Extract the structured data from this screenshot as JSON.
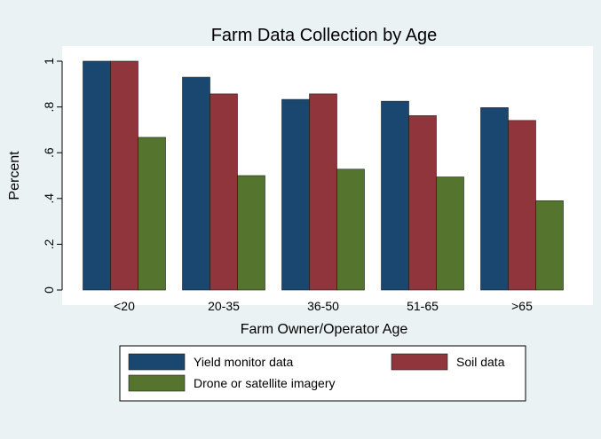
{
  "chart_data": {
    "type": "bar",
    "title": "Farm Data Collection by Age",
    "xlabel": "Farm Owner/Operator Age",
    "ylabel": "Percent",
    "categories": [
      "<20",
      "20-35",
      "36-50",
      "51-65",
      ">65"
    ],
    "ylim": [
      0,
      1
    ],
    "yticks": [
      0,
      0.2,
      0.4,
      0.6,
      0.8,
      1
    ],
    "ytick_labels": [
      "0",
      ".2",
      ".4",
      ".6",
      ".8",
      "1"
    ],
    "grid": false,
    "legend_position": "bottom",
    "series": [
      {
        "name": "Yield monitor data",
        "color": "#1a476f",
        "values": [
          1.0,
          0.93,
          0.833,
          0.825,
          0.797
        ]
      },
      {
        "name": "Soil data",
        "color": "#90353b",
        "values": [
          1.0,
          0.857,
          0.857,
          0.762,
          0.741
        ]
      },
      {
        "name": "Drone or satellite imagery",
        "color": "#55752f",
        "values": [
          0.667,
          0.5,
          0.528,
          0.494,
          0.39
        ]
      }
    ]
  }
}
